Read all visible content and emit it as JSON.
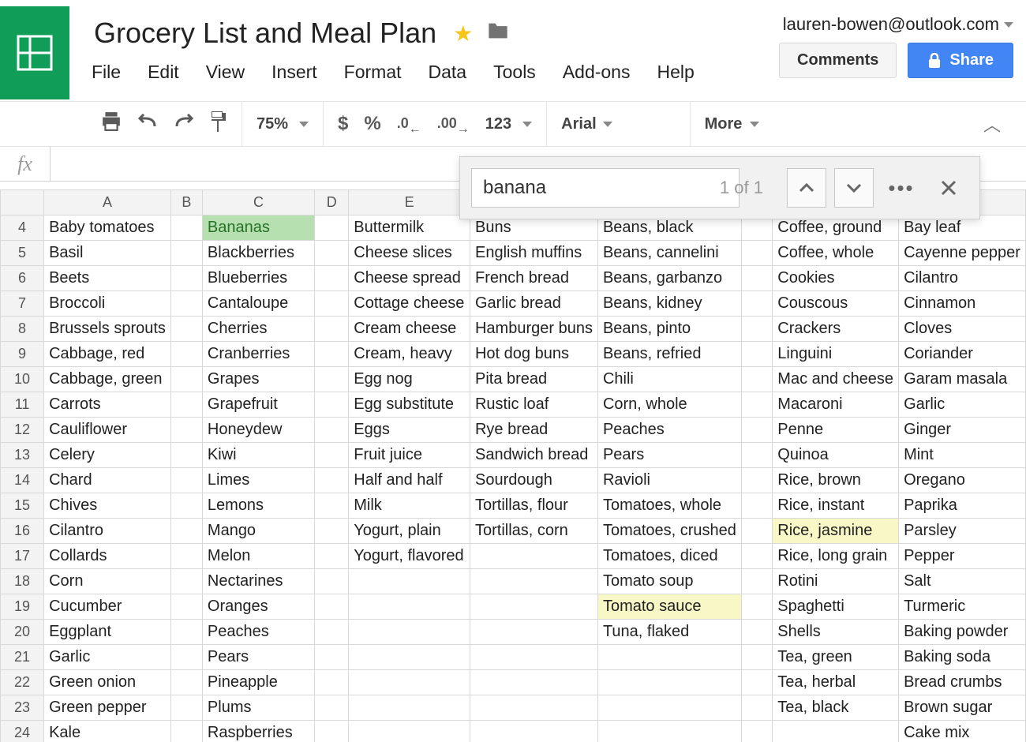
{
  "doc_title": "Grocery List and Meal Plan",
  "user_email": "lauren-bowen@outlook.com",
  "buttons": {
    "comments": "Comments",
    "share": "Share"
  },
  "menubar": [
    "File",
    "Edit",
    "View",
    "Insert",
    "Format",
    "Data",
    "Tools",
    "Add-ons",
    "Help"
  ],
  "toolbar": {
    "zoom": "75%",
    "font": "Arial",
    "more": "More",
    "number_format": "123",
    "dollar": "$",
    "percent": "%",
    "dec_dec": ".0",
    "inc_dec": ".00"
  },
  "find": {
    "query": "banana",
    "count_label": "1 of 1"
  },
  "columns": [
    "A",
    "B",
    "C",
    "D",
    "E"
  ],
  "row_start": 4,
  "row_end": 24,
  "highlights": {
    "green": [
      {
        "row": 4,
        "col": "C"
      }
    ],
    "yellow": [
      {
        "row": 16,
        "col": "I"
      },
      {
        "row": 19,
        "col": "G"
      }
    ]
  },
  "grid": {
    "A": [
      "Baby tomatoes",
      "Basil",
      "Beets",
      "Broccoli",
      "Brussels sprouts",
      "Cabbage, red",
      "Cabbage, green",
      "Carrots",
      "Cauliflower",
      "Celery",
      "Chard",
      "Chives",
      "Cilantro",
      "Collards",
      "Corn",
      "Cucumber",
      "Eggplant",
      "Garlic",
      "Green onion",
      "Green pepper",
      "Kale"
    ],
    "B": [
      "",
      "",
      "",
      "",
      "",
      "",
      "",
      "",
      "",
      "",
      "",
      "",
      "",
      "",
      "",
      "",
      "",
      "",
      "",
      "",
      ""
    ],
    "C": [
      "Bananas",
      "Blackberries",
      "Blueberries",
      "Cantaloupe",
      "Cherries",
      "Cranberries",
      "Grapes",
      "Grapefruit",
      "Honeydew",
      "Kiwi",
      "Limes",
      "Lemons",
      "Mango",
      "Melon",
      "Nectarines",
      "Oranges",
      "Peaches",
      "Pears",
      "Pineapple",
      "Plums",
      "Raspberries"
    ],
    "D": [
      "",
      "",
      "",
      "",
      "",
      "",
      "",
      "",
      "",
      "",
      "",
      "",
      "",
      "",
      "",
      "",
      "",
      "",
      "",
      "",
      ""
    ],
    "E": [
      "Buttermilk",
      "Cheese slices",
      "Cheese spread",
      "Cottage cheese",
      "Cream cheese",
      "Cream, heavy",
      "Egg nog",
      "Egg substitute",
      "Eggs",
      "Fruit juice",
      "Half and half",
      "Milk",
      "Yogurt, plain",
      "Yogurt, flavored",
      "",
      "",
      "",
      "",
      "",
      "",
      ""
    ],
    "F": [
      "Buns",
      "English muffins",
      "French bread",
      "Garlic bread",
      "Hamburger buns",
      "Hot dog buns",
      "Pita bread",
      "Rustic loaf",
      "Rye bread",
      "Sandwich bread",
      "Sourdough",
      "Tortillas, flour",
      "Tortillas, corn",
      "",
      "",
      "",
      "",
      "",
      "",
      "",
      ""
    ],
    "G": [
      "Beans, black",
      "Beans, cannelini",
      "Beans, garbanzo",
      "Beans, kidney",
      "Beans, pinto",
      "Beans, refried",
      "Chili",
      "Corn, whole",
      "Peaches",
      "Pears",
      "Ravioli",
      "Tomatoes, whole",
      "Tomatoes, crushed",
      "Tomatoes, diced",
      "Tomato soup",
      "Tomato sauce",
      "Tuna, flaked",
      "",
      "",
      "",
      ""
    ],
    "H": [
      "",
      "",
      "",
      "",
      "",
      "",
      "",
      "",
      "",
      "",
      "",
      "",
      "",
      "",
      "",
      "",
      "",
      "",
      "",
      "",
      ""
    ],
    "I": [
      "Coffee, ground",
      "Coffee, whole",
      "Cookies",
      "Couscous",
      "Crackers",
      "Linguini",
      "Mac and cheese",
      "Macaroni",
      "Penne",
      "Quinoa",
      "Rice, brown",
      "Rice, instant",
      "Rice, jasmine",
      "Rice, long grain",
      "Rotini",
      "Spaghetti",
      "Shells",
      "Tea, green",
      "Tea, herbal",
      "Tea, black",
      ""
    ],
    "J": [
      "Bay leaf",
      "Cayenne pepper",
      "Cilantro",
      "Cinnamon",
      "Cloves",
      "Coriander",
      "Garam masala",
      "Garlic",
      "Ginger",
      "Mint",
      "Oregano",
      "Paprika",
      "Parsley",
      "Pepper",
      "Salt",
      "Turmeric",
      "Baking powder",
      "Baking soda",
      "Bread crumbs",
      "Brown sugar",
      "Cake mix"
    ]
  },
  "colors": {
    "brand_green": "#0f9d58",
    "share_blue": "#4285f4",
    "star_yellow": "#f5c518",
    "hl_green": "#b6e0b0",
    "hl_yellow": "#f8f7c6",
    "border": "#d8d8d8"
  }
}
